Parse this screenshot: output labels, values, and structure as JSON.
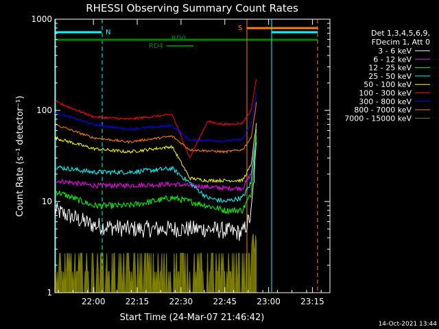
{
  "chart_data": {
    "type": "line",
    "title": "RHESSI Observing Summary Count Rates",
    "xlabel": "Start Time (24-Mar-07 21:46:42)",
    "ylabel": "Count Rate (s⁻¹ detector⁻¹)",
    "y_scale": "log",
    "ylim": [
      1,
      1000
    ],
    "xlim_minutes": [
      21.78,
      23.35
    ],
    "x_ticks": [
      "22:00",
      "22:15",
      "22:30",
      "22:45",
      "23:00",
      "23:15"
    ],
    "y_ticks": [
      "1",
      "10",
      "100",
      "1000"
    ],
    "grid": false,
    "legend": {
      "placement": "right",
      "header": [
        "Det 1,3,4,5,6,9,",
        "FDecim 1, Att 0"
      ]
    },
    "series": [
      {
        "name": "3 - 6 keV",
        "color": "#ffffff",
        "noise": 0.22,
        "x": [
          21.78,
          22.0,
          22.2,
          22.45,
          22.55,
          22.65,
          22.75,
          22.85,
          22.9,
          22.93
        ],
        "y": [
          8,
          5.5,
          5,
          5,
          5,
          5,
          4.8,
          4.5,
          7,
          40
        ]
      },
      {
        "name": "6 - 12 keV",
        "color": "#ff00ff",
        "noise": 0.06,
        "x": [
          21.78,
          22.0,
          22.2,
          22.45,
          22.55,
          22.65,
          22.75,
          22.85,
          22.9,
          22.93
        ],
        "y": [
          17,
          15,
          15,
          15.5,
          15,
          14.5,
          14,
          14,
          20,
          55
        ]
      },
      {
        "name": "12 - 25 keV",
        "color": "#00ff00",
        "noise": 0.08,
        "x": [
          21.78,
          22.0,
          22.2,
          22.45,
          22.55,
          22.65,
          22.75,
          22.85,
          22.9,
          22.93
        ],
        "y": [
          13,
          9,
          9,
          11,
          10,
          9,
          8,
          8,
          12,
          50
        ]
      },
      {
        "name": "25 - 50 keV",
        "color": "#00ffff",
        "noise": 0.06,
        "x": [
          21.78,
          22.0,
          22.2,
          22.45,
          22.55,
          22.65,
          22.75,
          22.85,
          22.9,
          22.93
        ],
        "y": [
          24,
          21,
          21,
          23,
          16,
          11,
          10,
          11,
          16,
          60
        ]
      },
      {
        "name": "50 - 100 keV",
        "color": "#ffff00",
        "noise": 0.04,
        "x": [
          21.78,
          22.0,
          22.2,
          22.45,
          22.55,
          22.65,
          22.75,
          22.85,
          22.9,
          22.93
        ],
        "y": [
          50,
          38,
          35,
          40,
          18,
          17,
          17,
          17,
          25,
          70
        ]
      },
      {
        "name": "100 - 300 keV",
        "color": "#ff0000",
        "noise": 0.03,
        "x": [
          21.78,
          22.0,
          22.2,
          22.45,
          22.55,
          22.65,
          22.75,
          22.85,
          22.9,
          22.93
        ],
        "y": [
          125,
          85,
          80,
          90,
          30,
          75,
          70,
          72,
          100,
          220
        ]
      },
      {
        "name": "300 - 800 keV",
        "color": "#0000ff",
        "noise": 0.03,
        "x": [
          21.78,
          22.0,
          22.2,
          22.45,
          22.55,
          22.65,
          22.75,
          22.85,
          22.9,
          22.93
        ],
        "y": [
          95,
          70,
          62,
          68,
          47,
          47,
          46,
          48,
          70,
          150
        ]
      },
      {
        "name": "800 - 7000 keV",
        "color": "#ff8000",
        "noise": 0.03,
        "x": [
          21.78,
          22.0,
          22.2,
          22.45,
          22.55,
          22.65,
          22.75,
          22.85,
          22.9,
          22.93
        ],
        "y": [
          70,
          50,
          45,
          52,
          37,
          36,
          35,
          37,
          50,
          120
        ]
      },
      {
        "name": "7000 - 15000 keV",
        "color": "#808000",
        "noise": 0,
        "style": "spiky",
        "x": [
          21.78,
          22.93
        ],
        "y": [
          2,
          2
        ]
      }
    ],
    "flags": [
      {
        "label": "N",
        "color": "#00ffff",
        "style": "dashed"
      },
      {
        "label": "S",
        "color": "#ff8000",
        "style": "solid"
      },
      {
        "label": "RD0",
        "color": "#008000",
        "style": "solid"
      },
      {
        "label": "RD4",
        "color": "#008000",
        "style": "solid"
      }
    ]
  },
  "footer": {
    "timestamp": "14-Oct-2021 13:44"
  }
}
